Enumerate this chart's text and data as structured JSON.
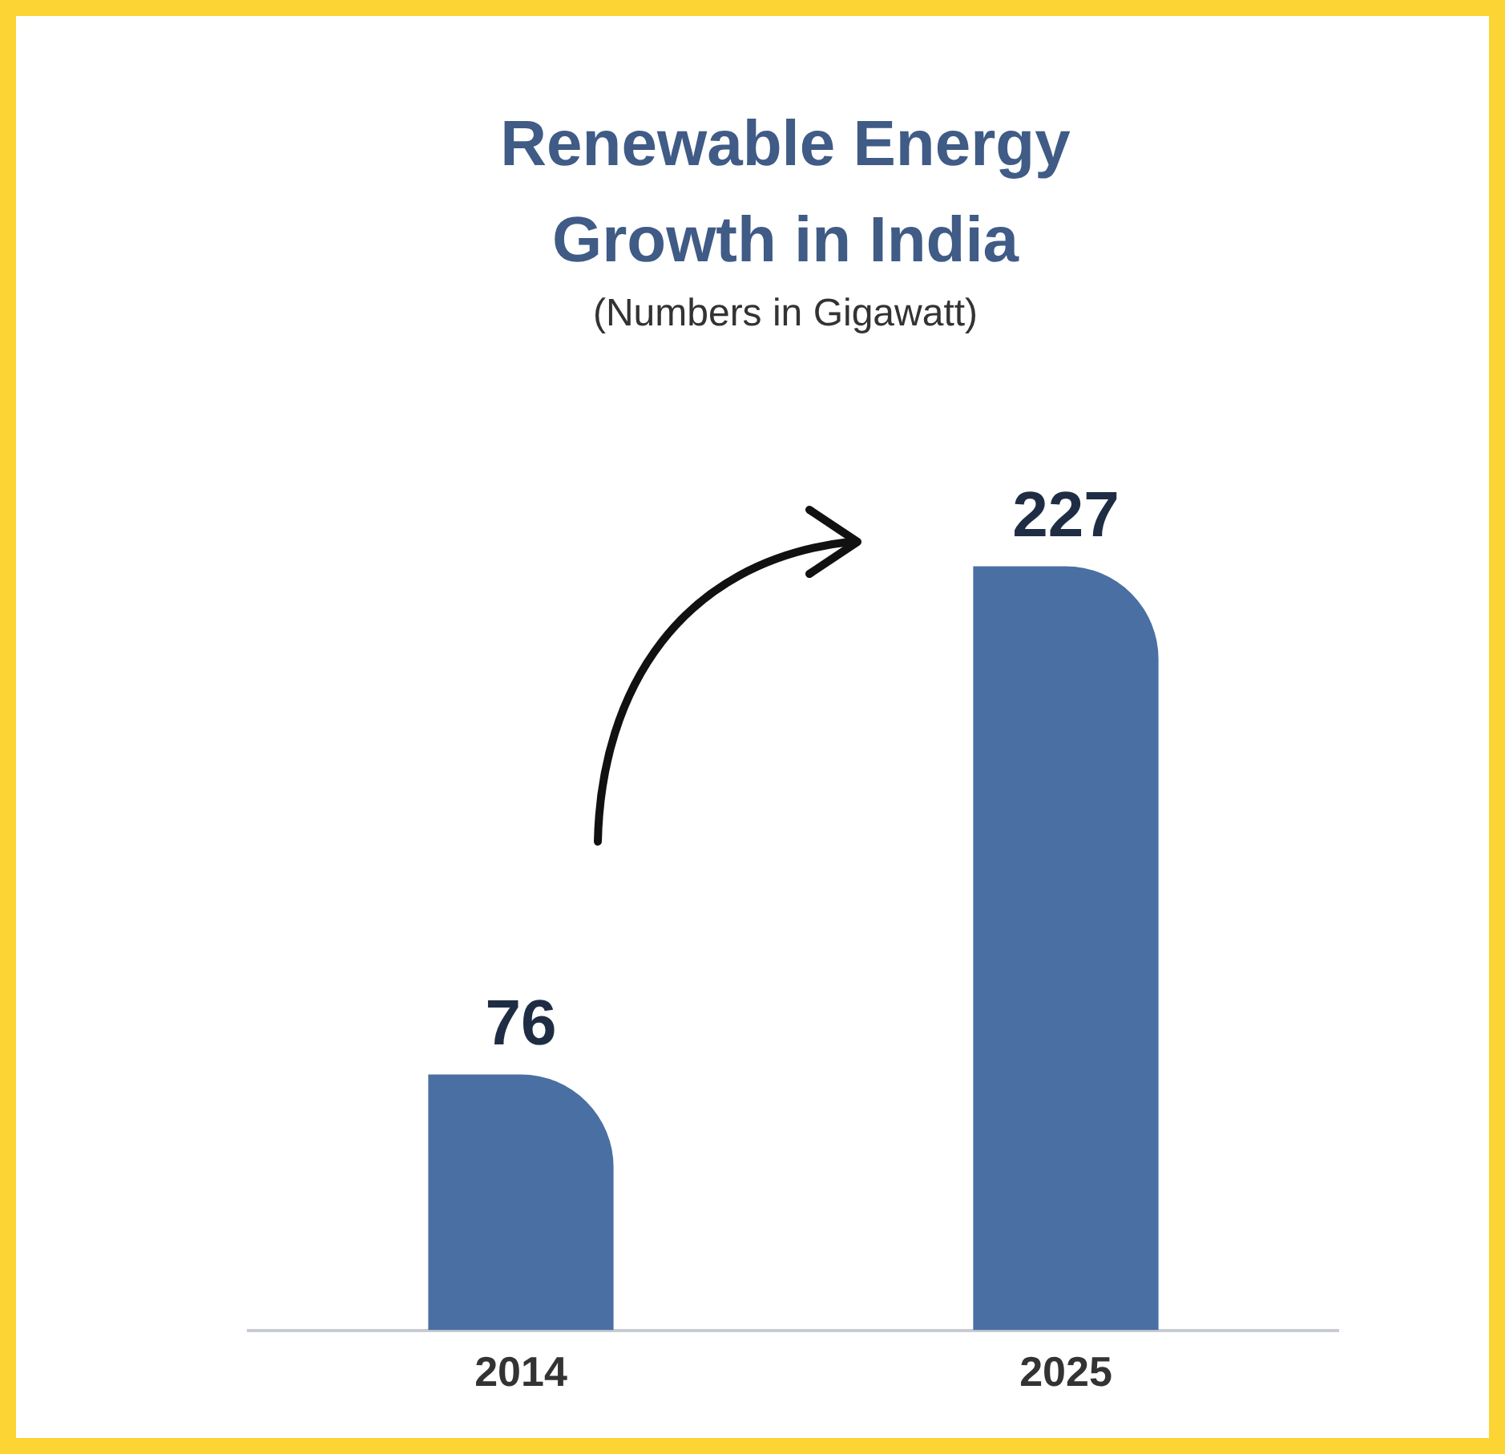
{
  "chart_data": {
    "type": "bar",
    "title": "Renewable Energy Growth in India",
    "subtitle": "(Numbers in Gigawatt)",
    "categories": [
      "2014",
      "2025"
    ],
    "values": [
      76,
      227
    ],
    "color": "#4a6fa3",
    "data_labels": true,
    "legend": false,
    "grid": false
  }
}
